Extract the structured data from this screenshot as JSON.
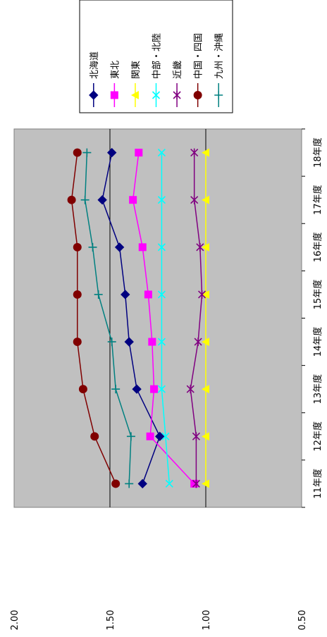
{
  "chart_data": {
    "type": "line",
    "orientation": "rotated-90",
    "categories": [
      "11年度",
      "12年度",
      "13年度",
      "14年度",
      "15年度",
      "16年度",
      "17年度",
      "18年度"
    ],
    "ylim": [
      0.5,
      2.0
    ],
    "yticks": [
      "0.50",
      "1.00",
      "1.50",
      "2.00"
    ],
    "grid": true,
    "legend": "right",
    "background": "#c0c0c0",
    "series": [
      {
        "name": "北海道",
        "color": "#000080",
        "marker": "diamond",
        "values": [
          1.33,
          1.24,
          1.36,
          1.4,
          1.42,
          1.45,
          1.54,
          1.49
        ]
      },
      {
        "name": "東北",
        "color": "#ff00ff",
        "marker": "square",
        "values": [
          1.06,
          1.29,
          1.27,
          1.28,
          1.3,
          1.33,
          1.38,
          1.35
        ]
      },
      {
        "name": "関東",
        "color": "#ffff00",
        "marker": "triangle",
        "values": [
          1.0,
          1.0,
          1.0,
          1.0,
          1.0,
          1.0,
          1.0,
          1.0
        ]
      },
      {
        "name": "中部・北陸",
        "color": "#00ffff",
        "marker": "x",
        "values": [
          1.19,
          1.21,
          1.23,
          1.23,
          1.23,
          1.23,
          1.23,
          1.23
        ]
      },
      {
        "name": "近畿",
        "color": "#800080",
        "marker": "star",
        "values": [
          1.05,
          1.05,
          1.08,
          1.04,
          1.02,
          1.03,
          1.06,
          1.06
        ]
      },
      {
        "name": "中国・四国",
        "color": "#800000",
        "marker": "circle",
        "values": [
          1.47,
          1.58,
          1.64,
          1.67,
          1.67,
          1.67,
          1.7,
          1.67
        ]
      },
      {
        "name": "九州・沖縄",
        "color": "#008080",
        "marker": "plus",
        "values": [
          1.4,
          1.39,
          1.47,
          1.49,
          1.56,
          1.59,
          1.63,
          1.62
        ]
      }
    ]
  }
}
